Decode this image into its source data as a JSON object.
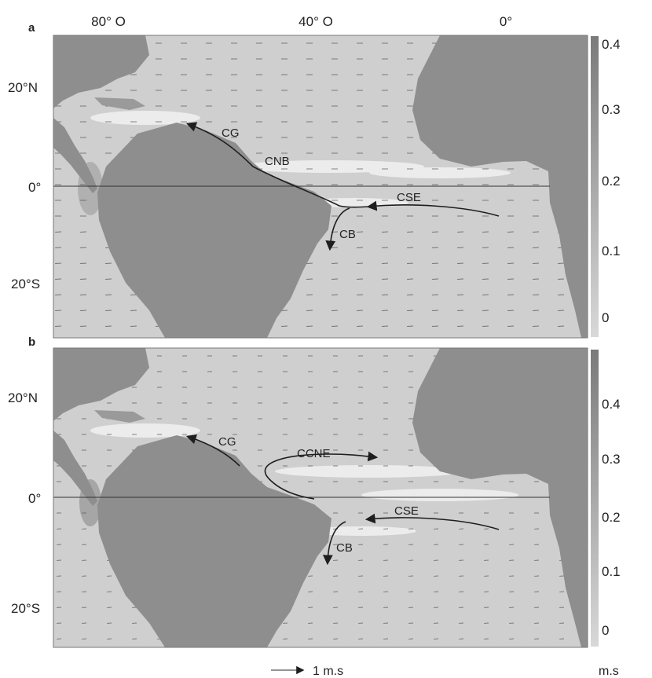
{
  "top_longitude_labels": [
    "80° O",
    "40° O",
    "0°"
  ],
  "colorbar_unit": "m.s",
  "reference_arrow_label": "1 m.s",
  "panels": [
    {
      "letter": "a",
      "lat_labels": [
        "20°N",
        "0°",
        "20°S"
      ],
      "colorbar_ticks": [
        "0.4",
        "0.3",
        "0.2",
        "0.1",
        "0"
      ],
      "currents": [
        "CG",
        "CNB",
        "CSE",
        "CB"
      ]
    },
    {
      "letter": "b",
      "lat_labels": [
        "20°N",
        "0°",
        "20°S"
      ],
      "colorbar_ticks": [
        "0.4",
        "0.3",
        "0.2",
        "0.1",
        "0"
      ],
      "currents": [
        "CG",
        "CCNE",
        "CSE",
        "CB"
      ]
    }
  ],
  "colors": {
    "land": "#8e8e8e",
    "ocean": "#cfcfcf",
    "current_line": "#1e1e1e",
    "colorbar_top": "#7a7a7a",
    "colorbar_bottom": "#d8d8d8"
  }
}
